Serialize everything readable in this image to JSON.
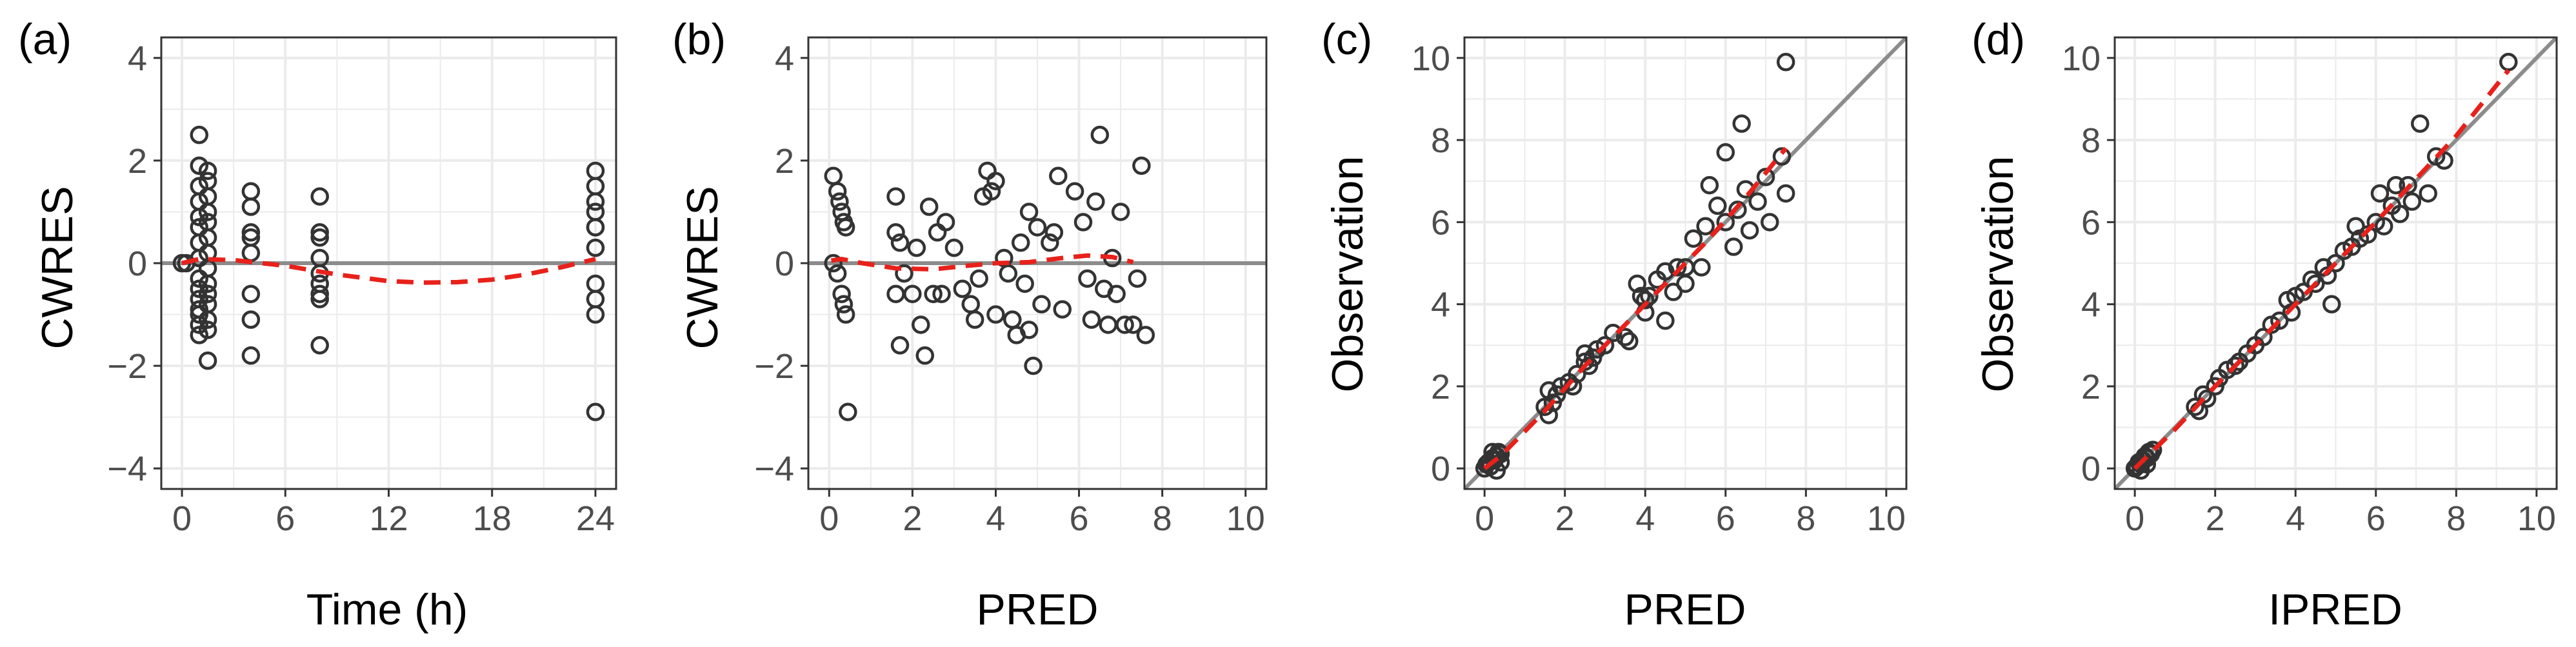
{
  "figure": {
    "panel_labels": [
      "(a)",
      "(b)",
      "(c)",
      "(d)"
    ],
    "colors": {
      "points": "#333333",
      "smooth": "#e8211b",
      "reference": "#8c8c8c",
      "grid": "#ebebeb",
      "border": "#333333",
      "tick_label": "#4d4d4d",
      "axis_title": "#000000"
    }
  },
  "chart_data": [
    {
      "id": "a",
      "type": "scatter",
      "panel_label": "(a)",
      "xlabel": "Time (h)",
      "ylabel": "CWRES",
      "xlim": [
        -1.2,
        25.2
      ],
      "ylim": [
        -4.4,
        4.4
      ],
      "xticks": [
        0,
        6,
        12,
        18,
        24
      ],
      "yticks": [
        -4,
        -2,
        0,
        2,
        4
      ],
      "grid": true,
      "reference_line": {
        "type": "horizontal",
        "y": 0
      },
      "smooth": {
        "style": "dashed",
        "points": [
          [
            0,
            0.0
          ],
          [
            1,
            0.08
          ],
          [
            3,
            0.06
          ],
          [
            6,
            -0.05
          ],
          [
            9,
            -0.22
          ],
          [
            12,
            -0.35
          ],
          [
            14,
            -0.38
          ],
          [
            16,
            -0.37
          ],
          [
            18,
            -0.32
          ],
          [
            20,
            -0.22
          ],
          [
            22,
            -0.08
          ],
          [
            24,
            0.08
          ]
        ]
      },
      "points": [
        [
          0,
          0
        ],
        [
          0.25,
          0
        ],
        [
          1,
          2.5
        ],
        [
          1,
          1.9
        ],
        [
          1,
          1.5
        ],
        [
          1,
          1.2
        ],
        [
          1,
          0.9
        ],
        [
          1,
          0.7
        ],
        [
          1,
          0.4
        ],
        [
          1,
          0.1
        ],
        [
          1,
          -0.3
        ],
        [
          1,
          -0.5
        ],
        [
          1,
          -0.7
        ],
        [
          1,
          -0.9
        ],
        [
          1,
          -1.0
        ],
        [
          1,
          -1.2
        ],
        [
          1,
          -1.4
        ],
        [
          1.5,
          1.8
        ],
        [
          1.5,
          1.6
        ],
        [
          1.5,
          1.3
        ],
        [
          1.5,
          1.0
        ],
        [
          1.5,
          0.8
        ],
        [
          1.5,
          0.5
        ],
        [
          1.5,
          0.2
        ],
        [
          1.5,
          -0.1
        ],
        [
          1.5,
          -0.4
        ],
        [
          1.5,
          -0.6
        ],
        [
          1.5,
          -0.8
        ],
        [
          1.5,
          -1.1
        ],
        [
          1.5,
          -1.3
        ],
        [
          1.5,
          -1.9
        ],
        [
          4,
          1.4
        ],
        [
          4,
          1.1
        ],
        [
          4,
          0.6
        ],
        [
          4,
          0.5
        ],
        [
          4,
          0.2
        ],
        [
          4,
          -0.6
        ],
        [
          4,
          -1.1
        ],
        [
          4,
          -1.8
        ],
        [
          8,
          1.3
        ],
        [
          8,
          0.6
        ],
        [
          8,
          0.5
        ],
        [
          8,
          0.1
        ],
        [
          8,
          -0.2
        ],
        [
          8,
          -0.4
        ],
        [
          8,
          -0.6
        ],
        [
          8,
          -0.7
        ],
        [
          8,
          -1.6
        ],
        [
          24,
          1.8
        ],
        [
          24,
          1.5
        ],
        [
          24,
          1.2
        ],
        [
          24,
          1.0
        ],
        [
          24,
          0.7
        ],
        [
          24,
          0.7
        ],
        [
          24,
          0.3
        ],
        [
          24,
          -0.4
        ],
        [
          24,
          -0.7
        ],
        [
          24,
          -1.0
        ],
        [
          24,
          -2.9
        ]
      ]
    },
    {
      "id": "b",
      "type": "scatter",
      "panel_label": "(b)",
      "xlabel": "PRED",
      "ylabel": "CWRES",
      "xlim": [
        -0.5,
        10.5
      ],
      "ylim": [
        -4.4,
        4.4
      ],
      "xticks": [
        0,
        2,
        4,
        6,
        8,
        10
      ],
      "yticks": [
        -4,
        -2,
        0,
        2,
        4
      ],
      "grid": true,
      "reference_line": {
        "type": "horizontal",
        "y": 0
      },
      "smooth": {
        "style": "dashed",
        "points": [
          [
            0.05,
            0.05
          ],
          [
            0.3,
            0.08
          ],
          [
            0.8,
            0.0
          ],
          [
            1.6,
            -0.1
          ],
          [
            2.5,
            -0.12
          ],
          [
            3.3,
            -0.05
          ],
          [
            4.0,
            0.0
          ],
          [
            4.8,
            0.02
          ],
          [
            5.6,
            0.1
          ],
          [
            6.2,
            0.15
          ],
          [
            6.8,
            0.12
          ],
          [
            7.3,
            0.02
          ]
        ]
      },
      "points": [
        [
          0.1,
          1.7
        ],
        [
          0.2,
          1.4
        ],
        [
          0.25,
          1.2
        ],
        [
          0.3,
          1.0
        ],
        [
          0.35,
          0.8
        ],
        [
          0.4,
          0.7
        ],
        [
          0.1,
          0.0
        ],
        [
          0.2,
          -0.2
        ],
        [
          0.3,
          -0.6
        ],
        [
          0.35,
          -0.8
        ],
        [
          0.4,
          -1.0
        ],
        [
          0.45,
          -2.9
        ],
        [
          1.6,
          1.3
        ],
        [
          1.6,
          0.6
        ],
        [
          1.7,
          0.4
        ],
        [
          1.8,
          -0.2
        ],
        [
          1.6,
          -0.6
        ],
        [
          1.7,
          -1.6
        ],
        [
          2.1,
          0.3
        ],
        [
          2.0,
          -0.6
        ],
        [
          2.2,
          -1.2
        ],
        [
          2.3,
          -1.8
        ],
        [
          2.4,
          1.1
        ],
        [
          2.5,
          -0.6
        ],
        [
          2.6,
          0.6
        ],
        [
          2.7,
          -0.6
        ],
        [
          2.8,
          0.8
        ],
        [
          3.0,
          0.3
        ],
        [
          3.2,
          -0.5
        ],
        [
          3.4,
          -0.8
        ],
        [
          3.5,
          -1.1
        ],
        [
          3.6,
          -0.3
        ],
        [
          3.7,
          1.3
        ],
        [
          3.8,
          1.8
        ],
        [
          3.9,
          1.4
        ],
        [
          4.0,
          1.6
        ],
        [
          4.0,
          -1.0
        ],
        [
          4.2,
          0.1
        ],
        [
          4.3,
          -0.2
        ],
        [
          4.4,
          -1.1
        ],
        [
          4.5,
          -1.4
        ],
        [
          4.6,
          0.4
        ],
        [
          4.7,
          -0.4
        ],
        [
          4.8,
          -1.3
        ],
        [
          4.8,
          1.0
        ],
        [
          4.9,
          -2.0
        ],
        [
          5.0,
          0.7
        ],
        [
          5.1,
          -0.8
        ],
        [
          5.3,
          0.4
        ],
        [
          5.4,
          0.6
        ],
        [
          5.5,
          1.7
        ],
        [
          5.6,
          -0.9
        ],
        [
          5.9,
          1.4
        ],
        [
          6.1,
          0.8
        ],
        [
          6.2,
          -0.3
        ],
        [
          6.3,
          -1.1
        ],
        [
          6.4,
          1.2
        ],
        [
          6.5,
          2.5
        ],
        [
          6.6,
          -0.5
        ],
        [
          6.7,
          -1.2
        ],
        [
          6.8,
          0.1
        ],
        [
          6.9,
          -0.6
        ],
        [
          7.0,
          1.0
        ],
        [
          7.1,
          -1.2
        ],
        [
          7.3,
          -1.2
        ],
        [
          7.4,
          -0.3
        ],
        [
          7.5,
          1.9
        ],
        [
          7.6,
          -1.4
        ]
      ]
    },
    {
      "id": "c",
      "type": "scatter",
      "panel_label": "(c)",
      "xlabel": "PRED",
      "ylabel": "Observation",
      "xlim": [
        -0.5,
        10.5
      ],
      "ylim": [
        -0.5,
        10.5
      ],
      "xticks": [
        0,
        2,
        4,
        6,
        8,
        10
      ],
      "yticks": [
        0,
        2,
        4,
        6,
        8,
        10
      ],
      "grid": true,
      "reference_line": {
        "type": "identity"
      },
      "smooth": {
        "style": "dashed",
        "points": [
          [
            0,
            0.0
          ],
          [
            0.4,
            0.3
          ],
          [
            1.5,
            1.4
          ],
          [
            2.5,
            2.5
          ],
          [
            3.5,
            3.5
          ],
          [
            4.5,
            4.5
          ],
          [
            5.5,
            5.5
          ],
          [
            6.5,
            6.6
          ],
          [
            7.5,
            7.8
          ]
        ]
      },
      "points": [
        [
          0.0,
          0.0
        ],
        [
          0.05,
          0.1
        ],
        [
          0.1,
          0.15
        ],
        [
          0.15,
          0.05
        ],
        [
          0.2,
          0.25
        ],
        [
          0.25,
          0.2
        ],
        [
          0.3,
          0.3
        ],
        [
          0.35,
          0.4
        ],
        [
          0.4,
          0.35
        ],
        [
          0.4,
          0.15
        ],
        [
          0.3,
          -0.05
        ],
        [
          0.2,
          0.4
        ],
        [
          1.5,
          1.5
        ],
        [
          1.6,
          1.9
        ],
        [
          1.7,
          1.6
        ],
        [
          1.6,
          1.3
        ],
        [
          1.8,
          1.8
        ],
        [
          1.9,
          2.0
        ],
        [
          2.1,
          2.1
        ],
        [
          2.2,
          2.0
        ],
        [
          2.3,
          2.3
        ],
        [
          2.5,
          2.6
        ],
        [
          2.5,
          2.8
        ],
        [
          2.6,
          2.5
        ],
        [
          2.7,
          2.7
        ],
        [
          2.8,
          2.9
        ],
        [
          3.0,
          3.0
        ],
        [
          3.2,
          3.3
        ],
        [
          3.5,
          3.2
        ],
        [
          3.6,
          3.1
        ],
        [
          3.8,
          4.5
        ],
        [
          3.9,
          4.2
        ],
        [
          4.0,
          4.1
        ],
        [
          4.0,
          3.8
        ],
        [
          4.1,
          4.2
        ],
        [
          4.3,
          4.6
        ],
        [
          4.5,
          4.8
        ],
        [
          4.5,
          3.6
        ],
        [
          4.7,
          4.3
        ],
        [
          4.8,
          4.9
        ],
        [
          5.0,
          4.9
        ],
        [
          5.0,
          4.5
        ],
        [
          5.2,
          5.6
        ],
        [
          5.4,
          4.9
        ],
        [
          5.5,
          5.9
        ],
        [
          5.6,
          6.9
        ],
        [
          5.8,
          6.4
        ],
        [
          6.0,
          6.0
        ],
        [
          6.0,
          7.7
        ],
        [
          6.2,
          5.4
        ],
        [
          6.3,
          6.3
        ],
        [
          6.4,
          8.4
        ],
        [
          6.5,
          6.8
        ],
        [
          6.6,
          5.8
        ],
        [
          6.8,
          6.5
        ],
        [
          7.0,
          7.1
        ],
        [
          7.1,
          6.0
        ],
        [
          7.4,
          7.6
        ],
        [
          7.5,
          6.7
        ],
        [
          7.5,
          9.9
        ]
      ]
    },
    {
      "id": "d",
      "type": "scatter",
      "panel_label": "(d)",
      "xlabel": "IPRED",
      "ylabel": "Observation",
      "xlim": [
        -0.5,
        10.5
      ],
      "ylim": [
        -0.5,
        10.5
      ],
      "xticks": [
        0,
        2,
        4,
        6,
        8,
        10
      ],
      "yticks": [
        0,
        2,
        4,
        6,
        8,
        10
      ],
      "grid": true,
      "reference_line": {
        "type": "identity"
      },
      "smooth": {
        "style": "dashed",
        "points": [
          [
            0,
            0.0
          ],
          [
            1.0,
            0.95
          ],
          [
            2.0,
            2.0
          ],
          [
            3.0,
            3.0
          ],
          [
            4.0,
            4.0
          ],
          [
            5.0,
            5.0
          ],
          [
            6.0,
            6.0
          ],
          [
            7.0,
            7.05
          ],
          [
            8.0,
            8.1
          ],
          [
            9.3,
            9.7
          ]
        ]
      },
      "points": [
        [
          0.0,
          0.0
        ],
        [
          0.05,
          0.05
        ],
        [
          0.1,
          0.15
        ],
        [
          0.15,
          0.1
        ],
        [
          0.2,
          0.2
        ],
        [
          0.25,
          0.3
        ],
        [
          0.3,
          0.25
        ],
        [
          0.35,
          0.4
        ],
        [
          0.4,
          0.35
        ],
        [
          0.45,
          0.45
        ],
        [
          0.15,
          -0.05
        ],
        [
          0.3,
          0.1
        ],
        [
          1.5,
          1.5
        ],
        [
          1.6,
          1.4
        ],
        [
          1.7,
          1.8
        ],
        [
          1.8,
          1.7
        ],
        [
          2.0,
          2.0
        ],
        [
          2.1,
          2.2
        ],
        [
          2.3,
          2.4
        ],
        [
          2.5,
          2.5
        ],
        [
          2.6,
          2.6
        ],
        [
          2.8,
          2.8
        ],
        [
          3.0,
          3.0
        ],
        [
          3.2,
          3.2
        ],
        [
          3.4,
          3.5
        ],
        [
          3.6,
          3.6
        ],
        [
          3.8,
          4.1
        ],
        [
          3.9,
          3.8
        ],
        [
          4.0,
          4.2
        ],
        [
          4.2,
          4.3
        ],
        [
          4.4,
          4.6
        ],
        [
          4.5,
          4.5
        ],
        [
          4.7,
          4.9
        ],
        [
          4.8,
          4.7
        ],
        [
          4.9,
          4.0
        ],
        [
          5.0,
          5.0
        ],
        [
          5.2,
          5.3
        ],
        [
          5.4,
          5.4
        ],
        [
          5.5,
          5.9
        ],
        [
          5.6,
          5.6
        ],
        [
          5.8,
          5.7
        ],
        [
          6.0,
          6.0
        ],
        [
          6.1,
          6.7
        ],
        [
          6.2,
          5.9
        ],
        [
          6.4,
          6.4
        ],
        [
          6.5,
          6.9
        ],
        [
          6.6,
          6.2
        ],
        [
          6.8,
          6.9
        ],
        [
          6.9,
          6.5
        ],
        [
          7.1,
          8.4
        ],
        [
          7.3,
          6.7
        ],
        [
          7.5,
          7.6
        ],
        [
          7.7,
          7.5
        ],
        [
          9.3,
          9.9
        ]
      ]
    }
  ]
}
